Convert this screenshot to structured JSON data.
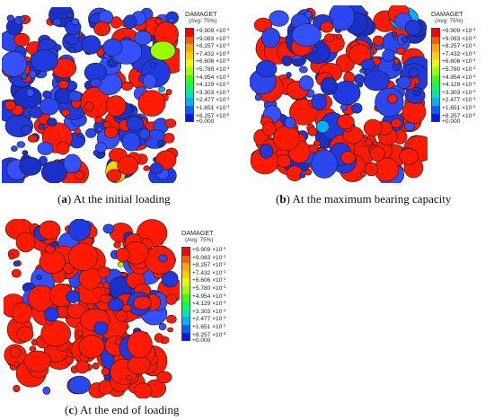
{
  "legend": {
    "title": "DAMAGET",
    "subtitle": "(Avg: 75%)",
    "levels": [
      {
        "label": "+9.909",
        "exp": "-1"
      },
      {
        "label": "+9.083",
        "exp": "-1"
      },
      {
        "label": "+8.257",
        "exp": "-1"
      },
      {
        "label": "+7.432",
        "exp": "-1"
      },
      {
        "label": "+6.606",
        "exp": "-1"
      },
      {
        "label": "+5.780",
        "exp": "-1"
      },
      {
        "label": "+4.954",
        "exp": "-1"
      },
      {
        "label": "+4.129",
        "exp": "-1"
      },
      {
        "label": "+3.303",
        "exp": "-1"
      },
      {
        "label": "+2.477",
        "exp": "-1"
      },
      {
        "label": "+1.651",
        "exp": "-1"
      },
      {
        "label": "+8.257",
        "exp": "-2"
      },
      {
        "label": "+0.000",
        "exp": ""
      }
    ],
    "colors": [
      "#ff0000",
      "#ff5a00",
      "#ffa600",
      "#ffd000",
      "#e3ff00",
      "#9bff00",
      "#3cff00",
      "#00ff58",
      "#00e6b0",
      "#00b0ff",
      "#0061ff",
      "#0014ff"
    ]
  },
  "panels": [
    {
      "letter": "a",
      "caption": "At the initial loading",
      "damage": 0.22
    },
    {
      "letter": "b",
      "caption": "At the maximum bearing capacity",
      "damage": 0.38
    },
    {
      "letter": "c",
      "caption": "At the end of loading",
      "damage": 0.62
    }
  ]
}
